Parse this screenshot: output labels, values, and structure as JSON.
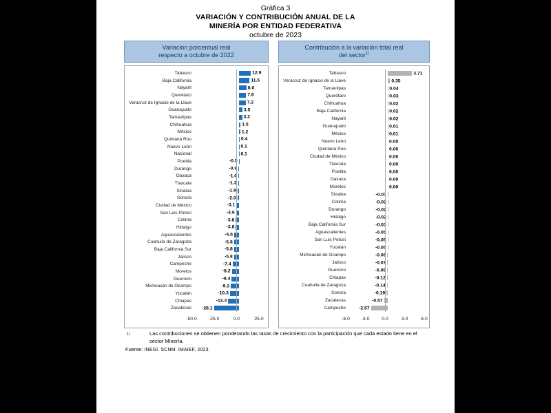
{
  "title": {
    "line1": "Gráfica 3",
    "line2": "VARIACIÓN Y CONTRIBUCIÓN ANUAL DE LA",
    "line3": "MINERÍA POR ENTIDAD FEDERATIVA",
    "line4": "octubre de 2023"
  },
  "footnote": {
    "marker": "1/",
    "text": "Las contribuciones se obtienen ponderando las tasas de crecimiento con la participación que cada estado tiene en el sector Minería.",
    "source_label": "Fuente:",
    "source": "INEGI. SCNM. IMAIEF, 2023."
  },
  "colors": {
    "bar_blue": "#1f72b8",
    "bar_gray": "#b3b3b3",
    "header_fill": "#aac6e2",
    "header_border": "#6f94bd",
    "header_text": "#17375e",
    "page_bg": "#ffffff",
    "canvas_bg": "#000000"
  },
  "chart_data": [
    {
      "type": "bar",
      "orientation": "horizontal",
      "title": "Variación porcentual real respecto a octubre de 2022",
      "header_lines": [
        "Variación porcentual real",
        "respecto a octubre de 2022"
      ],
      "bar_color": "#1f72b8",
      "xlim": [
        -50,
        25
      ],
      "xticks": [
        "-50.0",
        "-25.0",
        "0.0",
        "25.0"
      ],
      "grid": false,
      "legend": "none",
      "categories": [
        "Tabasco",
        "Baja California",
        "Nayarit",
        "Querétaro",
        "Veracruz de Ignacio de la Llave",
        "Guanajuato",
        "Tamaulipas",
        "Chihuahua",
        "México",
        "Quintana Roo",
        "Nuevo León",
        "Nacional",
        "Puebla",
        "Durango",
        "Oaxaca",
        "Tlaxcala",
        "Sinaloa",
        "Sonora",
        "Ciudad de México",
        "San Luis Potosí",
        "Colima",
        "Hidalgo",
        "Aguascalientes",
        "Coahuila de Zaragoza",
        "Baja California Sur",
        "Jalisco",
        "Campeche",
        "Morelos",
        "Guerrero",
        "Michoacán de Ocampo",
        "Yucatán",
        "Chiapas",
        "Zacatecas"
      ],
      "values": [
        12.9,
        11.5,
        8.0,
        7.6,
        7.2,
        3.5,
        3.2,
        1.5,
        1.2,
        0.4,
        0.1,
        0.1,
        -0.5,
        -0.9,
        -1.0,
        -1.3,
        -1.9,
        -2.0,
        -3.1,
        -3.6,
        -3.8,
        -3.8,
        -5.6,
        -5.8,
        -5.8,
        -5.8,
        -7.4,
        -8.2,
        -8.4,
        -9.3,
        -10.3,
        -12.3,
        -28.1
      ],
      "value_labels": [
        "12.9",
        "11.5",
        "8.0",
        "7.6",
        "7.2",
        "3.5",
        "3.2",
        "1.5",
        "1.2",
        "0.4",
        "0.1",
        "0.1",
        "-0.5",
        "-0.9",
        "-1.0",
        "-1.3",
        "-1.9",
        "-2.0",
        "-3.1",
        "-3.6",
        "-3.8",
        "-3.8",
        "-5.6",
        "-5.8",
        "-5.8",
        "-5.8",
        "-7.4",
        "-8.2",
        "-8.4",
        "-9.3",
        "-10.3",
        "-12.3",
        "-28.1"
      ]
    },
    {
      "type": "bar",
      "orientation": "horizontal",
      "title": "Contribución a la variación total real del sector",
      "header_lines": [
        "Contribución a la variación total real",
        "del sector"
      ],
      "header_sup": "1/",
      "bar_color": "#b3b3b3",
      "xlim": [
        -6,
        6
      ],
      "xticks": [
        "-6.0",
        "-3.0",
        "0.0",
        "3.0",
        "6.0"
      ],
      "grid": false,
      "legend": "none",
      "categories": [
        "Tabasco",
        "Veracruz de Ignacio de la Llave",
        "Tamaulipas",
        "Querétaro",
        "Chihuahua",
        "Baja California",
        "Nayarit",
        "Guanajuato",
        "México",
        "Nuevo León",
        "Quintana Roo",
        "Ciudad de México",
        "Tlaxcala",
        "Puebla",
        "Oaxaca",
        "Morelos",
        "Sinaloa",
        "Colima",
        "Durango",
        "Hidalgo",
        "Baja California Sur",
        "Aguascalientes",
        "San Luis Potosí",
        "Yucatán",
        "Michoacán de Ocampo",
        "Jalisco",
        "Guerrero",
        "Chiapas",
        "Coahuila de Zaragoza",
        "Sonora",
        "Zacatecas",
        "Campeche"
      ],
      "values": [
        3.71,
        0.35,
        0.04,
        0.03,
        0.02,
        0.02,
        0.02,
        0.01,
        0.01,
        0.0,
        0.0,
        0.0,
        0.0,
        0.0,
        0.0,
        0.0,
        -0.01,
        -0.02,
        -0.02,
        -0.02,
        -0.03,
        -0.05,
        -0.05,
        -0.05,
        -0.06,
        -0.07,
        -0.09,
        -0.12,
        -0.14,
        -0.19,
        -0.57,
        -2.57
      ],
      "value_labels": [
        "3.71",
        "0.35",
        "0.04",
        "0.03",
        "0.02",
        "0.02",
        "0.02",
        "0.01",
        "0.01",
        "0.00",
        "0.00",
        "0.00",
        "0.00",
        "0.00",
        "0.00",
        "0.00",
        "-0.01",
        "-0.02",
        "-0.02",
        "-0.02",
        "-0.03",
        "-0.05",
        "-0.05",
        "-0.05",
        "-0.06",
        "-0.07",
        "-0.09",
        "-0.12",
        "-0.14",
        "-0.19",
        "-0.57",
        "-2.57"
      ]
    }
  ]
}
